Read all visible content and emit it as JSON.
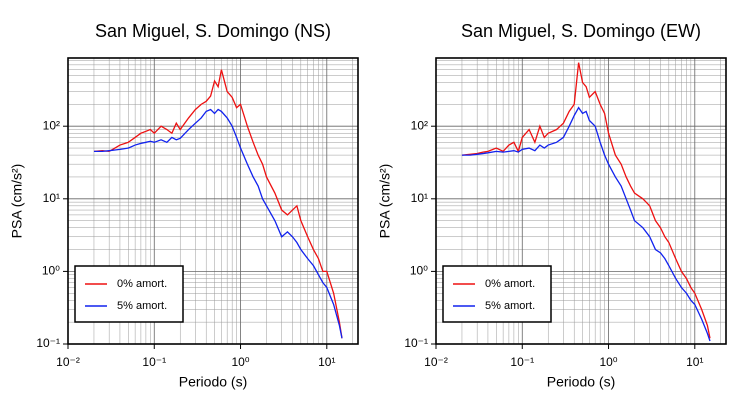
{
  "chart_data": [
    {
      "type": "line",
      "title": "San Miguel, S. Domingo (NS)",
      "xlabel": "Periodo (s)",
      "ylabel": "PSA (cm/s²)",
      "xscale": "log",
      "yscale": "log",
      "grid": true,
      "legend": "lower left",
      "xlim": [
        0.01,
        23
      ],
      "ylim": [
        0.1,
        870
      ],
      "xticks": [
        {
          "value": 0.01,
          "label": "10⁻²"
        },
        {
          "value": 0.1,
          "label": "10⁻¹"
        },
        {
          "value": 1,
          "label": "10⁰"
        },
        {
          "value": 10,
          "label": "10¹"
        }
      ],
      "yticks": [
        {
          "value": 0.1,
          "label": "10⁻¹"
        },
        {
          "value": 1,
          "label": "10⁰"
        },
        {
          "value": 10,
          "label": "10¹"
        },
        {
          "value": 100,
          "label": "10²"
        }
      ],
      "x": [
        0.02,
        0.025,
        0.03,
        0.035,
        0.04,
        0.05,
        0.06,
        0.07,
        0.08,
        0.09,
        0.1,
        0.12,
        0.14,
        0.16,
        0.18,
        0.2,
        0.25,
        0.3,
        0.35,
        0.4,
        0.45,
        0.5,
        0.55,
        0.6,
        0.7,
        0.8,
        0.9,
        1.0,
        1.2,
        1.4,
        1.6,
        1.8,
        2,
        2.5,
        3,
        3.5,
        4,
        4.5,
        5,
        6,
        7,
        8,
        9,
        10,
        12,
        14,
        15
      ],
      "series": [
        {
          "name": "0% amort.",
          "color": "#ee1111",
          "values": [
            45,
            46,
            45,
            50,
            55,
            60,
            70,
            80,
            85,
            90,
            80,
            100,
            90,
            80,
            110,
            90,
            130,
            170,
            200,
            220,
            260,
            420,
            350,
            600,
            300,
            250,
            180,
            200,
            100,
            60,
            40,
            30,
            20,
            12,
            7,
            6,
            7,
            8,
            5,
            3,
            2,
            1.5,
            1,
            1.0,
            0.5,
            0.2,
            0.12
          ]
        },
        {
          "name": "5% amort.",
          "color": "#1122ee",
          "values": [
            45,
            45,
            46,
            47,
            48,
            50,
            55,
            58,
            60,
            62,
            60,
            65,
            60,
            70,
            65,
            68,
            90,
            110,
            130,
            160,
            170,
            150,
            170,
            160,
            130,
            100,
            70,
            50,
            30,
            20,
            15,
            10,
            8,
            5,
            3,
            3.5,
            3,
            2.5,
            2,
            1.5,
            1.2,
            0.9,
            0.7,
            0.6,
            0.35,
            0.18,
            0.12
          ]
        }
      ]
    },
    {
      "type": "line",
      "title": "San Miguel, S. Domingo (EW)",
      "xlabel": "Periodo (s)",
      "ylabel": "PSA (cm/s²)",
      "xscale": "log",
      "yscale": "log",
      "grid": true,
      "legend": "lower left",
      "xlim": [
        0.01,
        23
      ],
      "ylim": [
        0.1,
        870
      ],
      "xticks": [
        {
          "value": 0.01,
          "label": "10⁻²"
        },
        {
          "value": 0.1,
          "label": "10⁻¹"
        },
        {
          "value": 1,
          "label": "10⁰"
        },
        {
          "value": 10,
          "label": "10¹"
        }
      ],
      "yticks": [
        {
          "value": 0.1,
          "label": "10⁻¹"
        },
        {
          "value": 1,
          "label": "10⁰"
        },
        {
          "value": 10,
          "label": "10¹"
        },
        {
          "value": 100,
          "label": "10²"
        }
      ],
      "x": [
        0.02,
        0.025,
        0.03,
        0.035,
        0.04,
        0.05,
        0.06,
        0.07,
        0.08,
        0.09,
        0.1,
        0.12,
        0.14,
        0.16,
        0.18,
        0.2,
        0.25,
        0.3,
        0.35,
        0.4,
        0.45,
        0.5,
        0.55,
        0.6,
        0.7,
        0.8,
        0.9,
        1.0,
        1.2,
        1.4,
        1.6,
        1.8,
        2,
        2.5,
        3,
        3.5,
        4,
        4.5,
        5,
        6,
        7,
        8,
        9,
        10,
        12,
        14,
        15
      ],
      "series": [
        {
          "name": "0% amort.",
          "color": "#ee1111",
          "values": [
            40,
            41,
            42,
            44,
            45,
            50,
            45,
            55,
            60,
            45,
            70,
            90,
            60,
            100,
            70,
            80,
            90,
            110,
            160,
            200,
            750,
            400,
            350,
            250,
            300,
            200,
            150,
            80,
            40,
            30,
            20,
            15,
            12,
            10,
            8,
            5,
            4,
            3,
            2.5,
            1.5,
            1.0,
            0.8,
            0.6,
            0.5,
            0.3,
            0.18,
            0.12
          ]
        },
        {
          "name": "5% amort.",
          "color": "#1122ee",
          "values": [
            40,
            40,
            41,
            42,
            43,
            45,
            44,
            45,
            46,
            44,
            48,
            50,
            46,
            55,
            50,
            55,
            60,
            70,
            100,
            140,
            180,
            150,
            160,
            120,
            100,
            60,
            40,
            30,
            20,
            15,
            10,
            7,
            5,
            4,
            3,
            2,
            1.8,
            1.5,
            1.2,
            0.8,
            0.6,
            0.5,
            0.4,
            0.35,
            0.22,
            0.14,
            0.11
          ]
        }
      ]
    }
  ]
}
